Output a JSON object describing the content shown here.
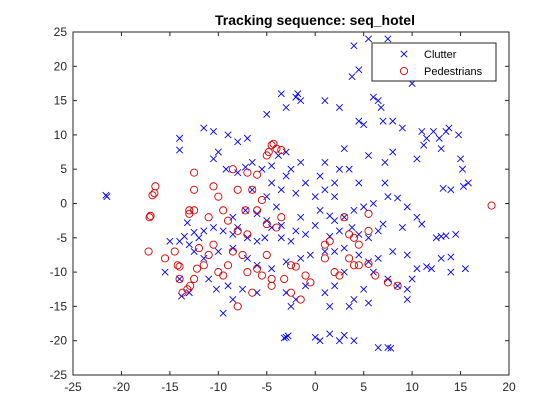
{
  "chart_data": {
    "type": "scatter",
    "title": "Tracking sequence: seq_hotel",
    "xlabel": "",
    "ylabel": "",
    "xlim": [
      -25,
      20
    ],
    "ylim": [
      -25,
      25
    ],
    "xticks": [
      -25,
      -20,
      -15,
      -10,
      -5,
      0,
      5,
      10,
      15,
      20
    ],
    "yticks": [
      -25,
      -20,
      -15,
      -10,
      -5,
      0,
      5,
      10,
      15,
      20,
      25
    ],
    "grid": false,
    "legend_position": "top-right",
    "series": [
      {
        "name": "Clutter",
        "marker": "x",
        "color": "#0000ff",
        "points": [
          [
            -21.5,
            1
          ],
          [
            -21.6,
            1.2
          ],
          [
            5.5,
            24
          ],
          [
            7.5,
            24
          ],
          [
            4,
            23
          ],
          [
            4.5,
            19.5
          ],
          [
            3.8,
            18.5
          ],
          [
            7,
            20
          ],
          [
            6,
            15.5
          ],
          [
            6.5,
            15
          ],
          [
            6.8,
            14
          ],
          [
            10,
            17.5
          ],
          [
            -3.5,
            16
          ],
          [
            -2,
            15.5
          ],
          [
            -1.8,
            16
          ],
          [
            -1.5,
            15
          ],
          [
            1,
            15
          ],
          [
            -3,
            14
          ],
          [
            -5,
            13
          ],
          [
            2.5,
            14
          ],
          [
            4.5,
            12
          ],
          [
            5,
            11.5
          ],
          [
            7,
            12
          ],
          [
            8,
            12
          ],
          [
            9,
            11
          ],
          [
            11,
            10.5
          ],
          [
            12.2,
            10.5
          ],
          [
            12.8,
            9.5
          ],
          [
            13.5,
            10.5
          ],
          [
            13.8,
            11
          ],
          [
            14.8,
            10
          ],
          [
            13,
            8
          ],
          [
            11.5,
            9.5
          ],
          [
            11.2,
            8.5
          ],
          [
            15.2,
            5
          ],
          [
            15.8,
            3
          ],
          [
            15.3,
            2.5
          ],
          [
            14,
            2
          ],
          [
            13.2,
            2.2
          ],
          [
            15,
            6.5
          ],
          [
            10.5,
            6.5
          ],
          [
            8,
            7.5
          ],
          [
            7.2,
            6
          ],
          [
            7.2,
            3
          ],
          [
            5.5,
            7
          ],
          [
            4.5,
            3
          ],
          [
            3.5,
            5
          ],
          [
            3,
            8
          ],
          [
            2.5,
            5
          ],
          [
            2,
            3
          ],
          [
            1,
            6
          ],
          [
            0.5,
            4
          ],
          [
            0,
            1
          ],
          [
            1,
            2
          ],
          [
            2,
            1
          ],
          [
            -8,
            4.5
          ],
          [
            -6.5,
            6
          ],
          [
            -5.5,
            5
          ],
          [
            -4.5,
            3
          ],
          [
            -3,
            4
          ],
          [
            -2.5,
            5
          ],
          [
            -1.5,
            6
          ],
          [
            -1,
            3
          ],
          [
            -2,
            1.5
          ],
          [
            -3.5,
            2
          ],
          [
            -5,
            1
          ],
          [
            -6.5,
            2
          ],
          [
            -4,
            -0.5
          ],
          [
            -6,
            -1.5
          ],
          [
            -7.2,
            -1
          ],
          [
            -8.5,
            -2
          ],
          [
            -5,
            -2.5
          ],
          [
            -3.5,
            -3.2
          ],
          [
            -1.5,
            -2
          ],
          [
            0.5,
            -1
          ],
          [
            1.5,
            -1.8
          ],
          [
            2,
            -2.5
          ],
          [
            3,
            -2
          ],
          [
            3.8,
            -3.5
          ],
          [
            4,
            -1
          ],
          [
            5,
            -0.5
          ],
          [
            6,
            0
          ],
          [
            7.5,
            1
          ],
          [
            8.5,
            0.8
          ],
          [
            9.5,
            -0.5
          ],
          [
            10.5,
            -2
          ],
          [
            11,
            -3
          ],
          [
            9,
            -3.5
          ],
          [
            7,
            -3
          ],
          [
            6.5,
            -4
          ],
          [
            5.5,
            -5
          ],
          [
            4.5,
            -4.5
          ],
          [
            2.5,
            -4
          ],
          [
            1.5,
            -4.8
          ],
          [
            0,
            -3.2
          ],
          [
            -1,
            -4.5
          ],
          [
            -2,
            -4
          ],
          [
            -2.5,
            -5.5
          ],
          [
            -3.5,
            -5
          ],
          [
            -4.5,
            -3.5
          ],
          [
            -5.2,
            -5
          ],
          [
            -6,
            -5.5
          ],
          [
            -7,
            -5
          ],
          [
            -8,
            -3.5
          ],
          [
            -8.5,
            -4.5
          ],
          [
            -9.5,
            -4
          ],
          [
            -10.5,
            -3.5
          ],
          [
            -11.5,
            -4
          ],
          [
            -12,
            -5
          ],
          [
            -12.5,
            -4.2
          ],
          [
            -13.2,
            -2.8
          ],
          [
            -13.5,
            -4.8
          ],
          [
            -14,
            -5.5
          ],
          [
            -15,
            -5.5
          ],
          [
            -13,
            -6
          ],
          [
            -12.5,
            -7
          ],
          [
            -11.5,
            -8
          ],
          [
            -10,
            -7
          ],
          [
            -8.5,
            -6.5
          ],
          [
            -7,
            -8
          ],
          [
            -6,
            -9
          ],
          [
            -4.5,
            -9.5
          ],
          [
            -3,
            -8.5
          ],
          [
            -1.5,
            -8
          ],
          [
            -0.5,
            -7.5
          ],
          [
            1,
            -7
          ],
          [
            2,
            -7
          ],
          [
            3,
            -6.5
          ],
          [
            4.5,
            -7.5
          ],
          [
            5.5,
            -8.5
          ],
          [
            6.5,
            -8
          ],
          [
            8,
            -7
          ],
          [
            9.5,
            -7.5
          ],
          [
            10.5,
            -9.5
          ],
          [
            12,
            -9.5
          ],
          [
            13,
            -8
          ],
          [
            14,
            -7.8
          ],
          [
            12.5,
            -5
          ],
          [
            13,
            -4.8
          ],
          [
            13.5,
            -4.7
          ],
          [
            14.5,
            -4.5
          ],
          [
            10,
            -11
          ],
          [
            11.5,
            -9.2
          ],
          [
            14,
            -10
          ],
          [
            15.5,
            -9.5
          ],
          [
            -13.8,
            -13.5
          ],
          [
            -11,
            -11
          ],
          [
            -9,
            -12
          ],
          [
            -7.5,
            -12.5
          ],
          [
            -3,
            -13
          ],
          [
            -1,
            -12
          ],
          [
            1,
            -13
          ],
          [
            2,
            -12
          ],
          [
            3,
            -10
          ],
          [
            6,
            -10
          ],
          [
            7.5,
            -11
          ],
          [
            8.5,
            -12
          ],
          [
            9.5,
            -12.5
          ],
          [
            5,
            -12.5
          ],
          [
            5.5,
            -14.5
          ],
          [
            4,
            -14
          ],
          [
            3.5,
            -15
          ],
          [
            1.5,
            -15
          ],
          [
            -2,
            -14
          ],
          [
            -2.5,
            -15
          ],
          [
            -6,
            -13
          ],
          [
            -9.5,
            -16
          ],
          [
            -8.5,
            -14
          ],
          [
            -13,
            -13
          ],
          [
            -14,
            -11
          ],
          [
            -15.5,
            -10
          ],
          [
            -10.2,
            -12.5
          ],
          [
            9.5,
            -14
          ],
          [
            -14,
            9.5
          ],
          [
            -14,
            7.8
          ],
          [
            -11.5,
            11
          ],
          [
            -10.5,
            10.5
          ],
          [
            -9,
            10
          ],
          [
            -8,
            9
          ],
          [
            -7,
            9.5
          ],
          [
            -10,
            7.5
          ],
          [
            -10.5,
            6.5
          ],
          [
            -9.2,
            5
          ],
          [
            -7.2,
            5.3
          ],
          [
            -4.5,
            5.5
          ],
          [
            -3.8,
            7
          ],
          [
            -3,
            7.5
          ],
          [
            -3,
            -19.5
          ],
          [
            -3.2,
            -19.6
          ],
          [
            0,
            -19.5
          ],
          [
            0.5,
            -20
          ],
          [
            1.5,
            -19
          ],
          [
            2.5,
            -20
          ],
          [
            3,
            -19.2
          ],
          [
            4,
            -20
          ],
          [
            6.5,
            -21
          ],
          [
            7.5,
            -21
          ],
          [
            7.8,
            -21.1
          ],
          [
            -2.8,
            -19.3
          ]
        ]
      },
      {
        "name": "Pedestrians",
        "marker": "o",
        "color": "#d40000",
        "points": [
          [
            -16.5,
            2.5
          ],
          [
            -16.6,
            1.5
          ],
          [
            -16.8,
            1.2
          ],
          [
            -17,
            -1.8
          ],
          [
            -17.1,
            -2
          ],
          [
            -17.2,
            -7
          ],
          [
            -15.5,
            -8
          ],
          [
            -14.5,
            -7
          ],
          [
            -14.2,
            -9
          ],
          [
            -14,
            -9.2
          ],
          [
            -14,
            -11
          ],
          [
            -13.2,
            -12.5
          ],
          [
            -12.9,
            -12
          ],
          [
            -13.7,
            -13
          ],
          [
            -12.5,
            -11
          ],
          [
            -12.2,
            -9.5
          ],
          [
            -11.5,
            -9
          ],
          [
            -11,
            -7.5
          ],
          [
            -10.5,
            -6
          ],
          [
            -12,
            -6.5
          ],
          [
            -10,
            -10
          ],
          [
            -9.5,
            -10.5
          ],
          [
            -9,
            -9
          ],
          [
            -8.5,
            -7
          ],
          [
            -7.5,
            -7.5
          ],
          [
            -7,
            -10
          ],
          [
            -6,
            -9.5
          ],
          [
            -5.5,
            -10.5
          ],
          [
            -5,
            -7.5
          ],
          [
            -4.5,
            -11
          ],
          [
            -3.2,
            -11
          ],
          [
            -2.5,
            -9
          ],
          [
            -2,
            -9.2
          ],
          [
            -1,
            -10.5
          ],
          [
            -0.5,
            -11.5
          ],
          [
            1,
            -8
          ],
          [
            2,
            -10
          ],
          [
            2.5,
            -10.5
          ],
          [
            3.5,
            -8
          ],
          [
            4.5,
            -9
          ],
          [
            5.5,
            -8.8
          ],
          [
            6.2,
            -10.5
          ],
          [
            7.5,
            -11.5
          ],
          [
            8.5,
            -12
          ],
          [
            -8,
            -15
          ],
          [
            -6.5,
            -13
          ],
          [
            -4.5,
            -12
          ],
          [
            -2.5,
            -13
          ],
          [
            -1.5,
            -14
          ],
          [
            -12.5,
            4.5
          ],
          [
            -12.5,
            2
          ],
          [
            -13,
            -1
          ],
          [
            -12.5,
            -1
          ],
          [
            -13,
            -1.5
          ],
          [
            -11,
            -2
          ],
          [
            -10.5,
            2.5
          ],
          [
            -10,
            1
          ],
          [
            -9.5,
            -1
          ],
          [
            -9,
            -2.5
          ],
          [
            -8,
            -4
          ],
          [
            -7,
            -4.5
          ],
          [
            -7.2,
            -1
          ],
          [
            -6,
            -1
          ],
          [
            -5,
            -3
          ],
          [
            -4,
            -3.5
          ],
          [
            -3.5,
            -2
          ],
          [
            -5.5,
            0.5
          ],
          [
            -5,
            7
          ],
          [
            -4.8,
            7.5
          ],
          [
            -4,
            8
          ],
          [
            -3.5,
            7.8
          ],
          [
            -4.5,
            8.5
          ],
          [
            -4.3,
            8.7
          ],
          [
            -8,
            2
          ],
          [
            -6.5,
            2
          ],
          [
            -7,
            4.5
          ],
          [
            -8.5,
            5
          ],
          [
            -6,
            4.2
          ],
          [
            1,
            -6
          ],
          [
            1.5,
            -5.5
          ],
          [
            3,
            -2
          ],
          [
            3.5,
            -4.5
          ],
          [
            4,
            -5
          ],
          [
            4.5,
            -6
          ],
          [
            5.5,
            -1.5
          ],
          [
            5.5,
            -4
          ],
          [
            4,
            -9
          ],
          [
            18.2,
            -0.3
          ]
        ]
      }
    ]
  }
}
